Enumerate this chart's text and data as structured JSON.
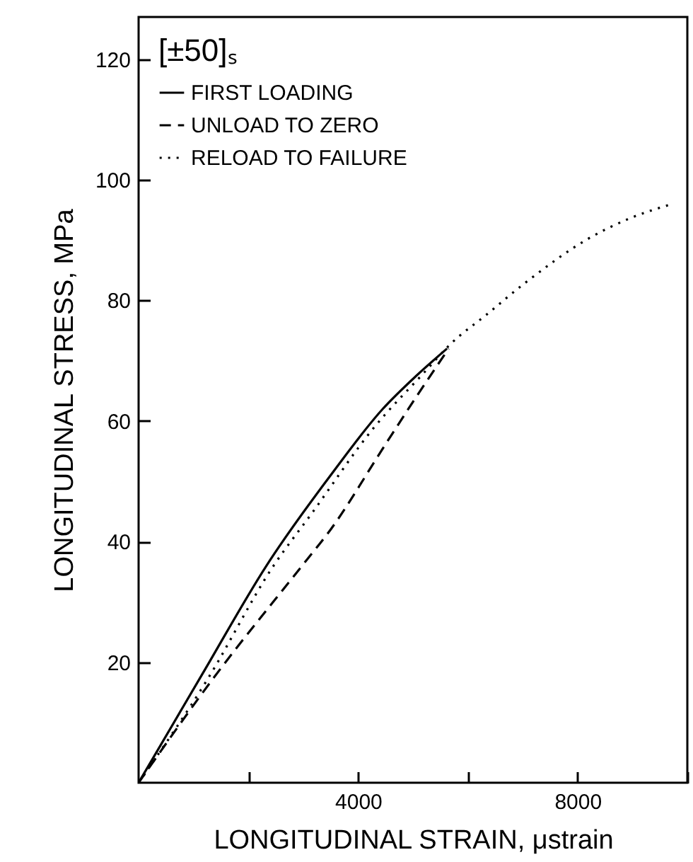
{
  "chart_data": {
    "type": "line",
    "xlabel": "LONGITUDINAL STRAIN, μstrain",
    "ylabel": "LONGITUDINAL STRESS, MPa",
    "legend_title": "[±50]ₛ",
    "xlim": [
      0,
      10000
    ],
    "xticks": [
      {
        "value": 2000,
        "label": null
      },
      4000,
      {
        "value": 6000,
        "label": null
      },
      8000,
      {
        "value": 10000,
        "label": null
      }
    ],
    "ylim": [
      0,
      127
    ],
    "yticks": [
      20,
      40,
      60,
      80,
      100,
      120
    ],
    "grid": false,
    "legend": "top left",
    "series": [
      {
        "name": "FIRST LOADING",
        "color": "#000000",
        "line_style": "solid",
        "x": [
          0,
          1160,
          2330,
          3500,
          4450,
          5050,
          5620
        ],
        "values": [
          0,
          18,
          36,
          51,
          62,
          67.4,
          72
        ]
      },
      {
        "name": "UNLOAD TO ZERO",
        "color": "#000000",
        "line_style": "dashed",
        "x": [
          0,
          1335,
          2980,
          3500,
          4490,
          5060,
          5650
        ],
        "values": [
          0,
          17,
          36,
          42,
          56,
          64,
          72
        ]
      },
      {
        "name": "RELOAD TO FAILURE",
        "color": "#000000",
        "line_style": "dotted",
        "x": [
          0,
          1245,
          2460,
          3150,
          4280,
          5180,
          5700,
          6350,
          6960,
          7130,
          8170,
          8950,
          9730
        ],
        "values": [
          0,
          17,
          36,
          44.6,
          58.8,
          67.8,
          72.9,
          77.7,
          82.3,
          83.5,
          90.1,
          93.6,
          96
        ]
      }
    ]
  }
}
